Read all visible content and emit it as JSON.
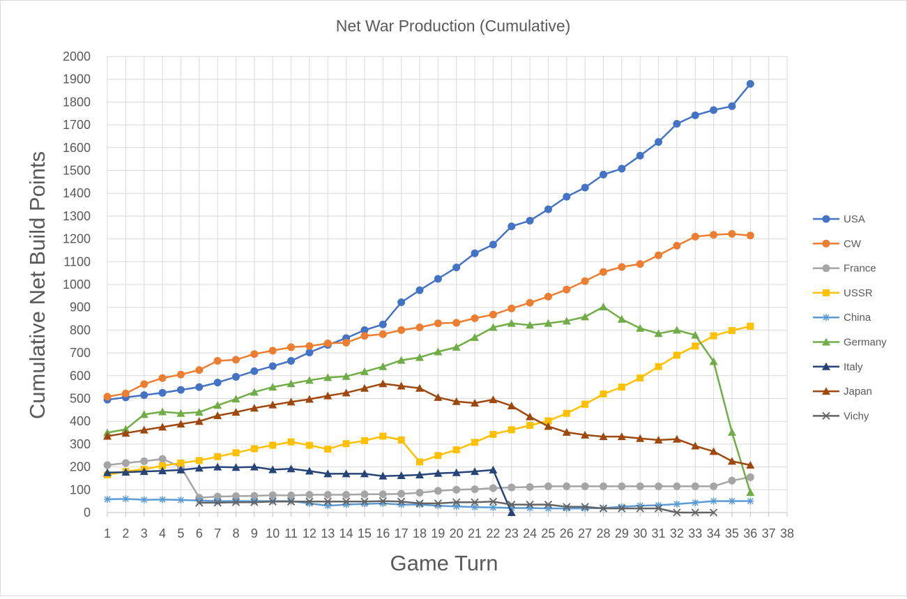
{
  "chart_data": {
    "type": "line",
    "title": "Net War Production (Cumulative)",
    "xlabel": "Game Turn",
    "ylabel": "Cumulative Net Build Points",
    "xlim": [
      1,
      38
    ],
    "ylim": [
      0,
      2000
    ],
    "y_ticks": [
      "0",
      "100",
      "200",
      "300",
      "400",
      "500",
      "600",
      "700",
      "800",
      "900",
      "1000",
      "1100",
      "1200",
      "1300",
      "1400",
      "1500",
      "1600",
      "1700",
      "1800",
      "1900",
      "2000"
    ],
    "x_ticks": [
      "1",
      "2",
      "3",
      "4",
      "5",
      "6",
      "7",
      "8",
      "9",
      "10",
      "11",
      "12",
      "13",
      "14",
      "15",
      "16",
      "17",
      "18",
      "19",
      "20",
      "21",
      "22",
      "23",
      "24",
      "25",
      "26",
      "27",
      "28",
      "29",
      "30",
      "31",
      "32",
      "33",
      "34",
      "35",
      "36",
      "37",
      "38"
    ],
    "grid": true,
    "legend_position": "right",
    "series": [
      {
        "name": "USA",
        "color": "#4472C4",
        "marker": "circle",
        "start": 1,
        "values": [
          495,
          505,
          515,
          525,
          538,
          550,
          570,
          595,
          620,
          642,
          665,
          702,
          735,
          765,
          800,
          825,
          922,
          975,
          1025,
          1075,
          1137,
          1175,
          1255,
          1280,
          1330,
          1385,
          1425,
          1482,
          1508,
          1565,
          1625,
          1705,
          1742,
          1765,
          1782,
          1880
        ]
      },
      {
        "name": "CW",
        "color": "#ED7D31",
        "marker": "circle",
        "start": 1,
        "values": [
          508,
          522,
          563,
          590,
          605,
          625,
          665,
          670,
          695,
          710,
          725,
          730,
          742,
          745,
          775,
          782,
          800,
          812,
          830,
          832,
          852,
          868,
          895,
          920,
          947,
          978,
          1015,
          1055,
          1077,
          1090,
          1128,
          1170,
          1210,
          1218,
          1222,
          1215
        ]
      },
      {
        "name": "France",
        "color": "#A5A5A5",
        "marker": "circle",
        "start": 1,
        "values": [
          208,
          217,
          225,
          235,
          200,
          65,
          70,
          72,
          73,
          76,
          75,
          78,
          78,
          78,
          80,
          80,
          82,
          87,
          95,
          100,
          102,
          107,
          110,
          112,
          115,
          115,
          115,
          115,
          115,
          115,
          115,
          115,
          115,
          115,
          140,
          155
        ]
      },
      {
        "name": "USSR",
        "color": "#FFC000",
        "marker": "square",
        "start": 1,
        "values": [
          165,
          180,
          190,
          205,
          217,
          228,
          245,
          262,
          280,
          295,
          310,
          295,
          278,
          302,
          315,
          335,
          318,
          222,
          250,
          275,
          308,
          343,
          363,
          382,
          402,
          435,
          475,
          520,
          550,
          590,
          640,
          690,
          730,
          775,
          798,
          817
        ]
      },
      {
        "name": "China",
        "color": "#5B9BD5",
        "marker": "star",
        "start": 1,
        "values": [
          58,
          60,
          56,
          57,
          55,
          53,
          50,
          50,
          50,
          50,
          50,
          40,
          30,
          35,
          38,
          40,
          35,
          35,
          30,
          27,
          24,
          22,
          20,
          20,
          18,
          18,
          18,
          20,
          25,
          30,
          32,
          37,
          43,
          50,
          50,
          50
        ]
      },
      {
        "name": "Germany",
        "color": "#70AD47",
        "marker": "triangle",
        "start": 1,
        "values": [
          350,
          365,
          430,
          442,
          435,
          440,
          470,
          498,
          528,
          550,
          565,
          580,
          592,
          597,
          618,
          640,
          668,
          680,
          705,
          725,
          768,
          812,
          830,
          822,
          830,
          840,
          858,
          902,
          848,
          808,
          785,
          800,
          778,
          662,
          352,
          88
        ]
      },
      {
        "name": "Italy",
        "color": "#264478",
        "marker": "triangle",
        "start": 1,
        "values": [
          175,
          177,
          180,
          183,
          187,
          195,
          200,
          198,
          200,
          188,
          192,
          182,
          170,
          170,
          170,
          160,
          162,
          165,
          172,
          175,
          180,
          187,
          0
        ]
      },
      {
        "name": "Japan",
        "color": "#9E480E",
        "marker": "triangle",
        "start": 1,
        "values": [
          335,
          348,
          362,
          375,
          388,
          400,
          425,
          440,
          458,
          472,
          485,
          497,
          512,
          525,
          545,
          565,
          555,
          545,
          505,
          487,
          480,
          495,
          468,
          420,
          378,
          352,
          340,
          333,
          333,
          325,
          318,
          322,
          292,
          268,
          225,
          208
        ]
      },
      {
        "name": "Vichy",
        "color": "#636363",
        "marker": "x",
        "start": 6,
        "values": [
          43,
          43,
          45,
          45,
          48,
          48,
          48,
          48,
          48,
          48,
          50,
          48,
          40,
          40,
          45,
          45,
          48,
          35,
          35,
          35,
          25,
          25,
          18,
          18,
          18,
          18,
          0,
          0,
          0
        ]
      }
    ]
  }
}
